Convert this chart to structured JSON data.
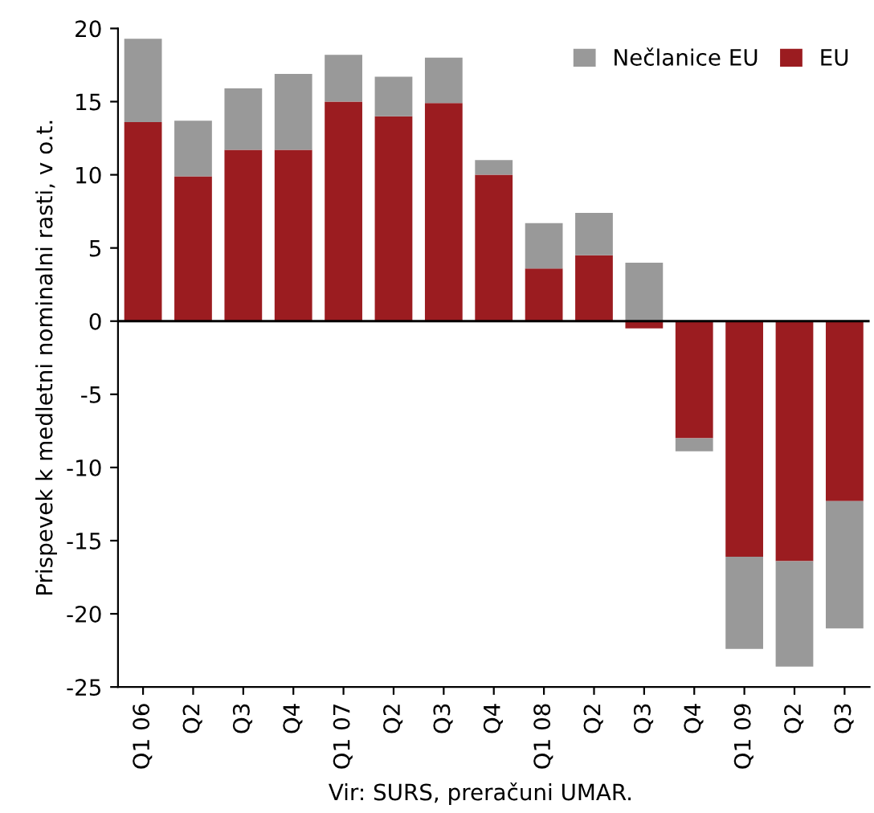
{
  "chart_data": {
    "type": "bar",
    "stacked": true,
    "ylabel": "Prispevek k medletni nominalni rasti, v o.t.",
    "categories": [
      "Q1 06",
      "Q2",
      "Q3",
      "Q4",
      "Q1 07",
      "Q2",
      "Q3",
      "Q4",
      "Q1 08",
      "Q2",
      "Q3",
      "Q4",
      "Q1 09",
      "Q2",
      "Q3"
    ],
    "series": [
      {
        "name": "EU",
        "color": "#9b1c20",
        "values": [
          13.6,
          9.9,
          11.7,
          11.7,
          15.0,
          14.0,
          14.9,
          10.0,
          3.6,
          4.5,
          -0.5,
          -8.0,
          -16.1,
          -16.4,
          -12.3
        ]
      },
      {
        "name": "Nečlanice EU",
        "color": "#999999",
        "values": [
          5.7,
          3.8,
          4.2,
          5.2,
          3.2,
          2.7,
          3.1,
          1.0,
          3.1,
          2.9,
          4.0,
          -0.9,
          -6.3,
          -7.2,
          -8.7
        ]
      }
    ],
    "ylim": [
      -25,
      20
    ],
    "yticks": [
      -25,
      -20,
      -15,
      -10,
      -5,
      0,
      5,
      10,
      15,
      20
    ],
    "ref_lines": [
      {
        "axis": "y",
        "value": 0,
        "color": "#000000"
      }
    ],
    "legend": "top right",
    "grid": false,
    "annotations": [
      "Vir: SURS, preračuni UMAR."
    ]
  }
}
